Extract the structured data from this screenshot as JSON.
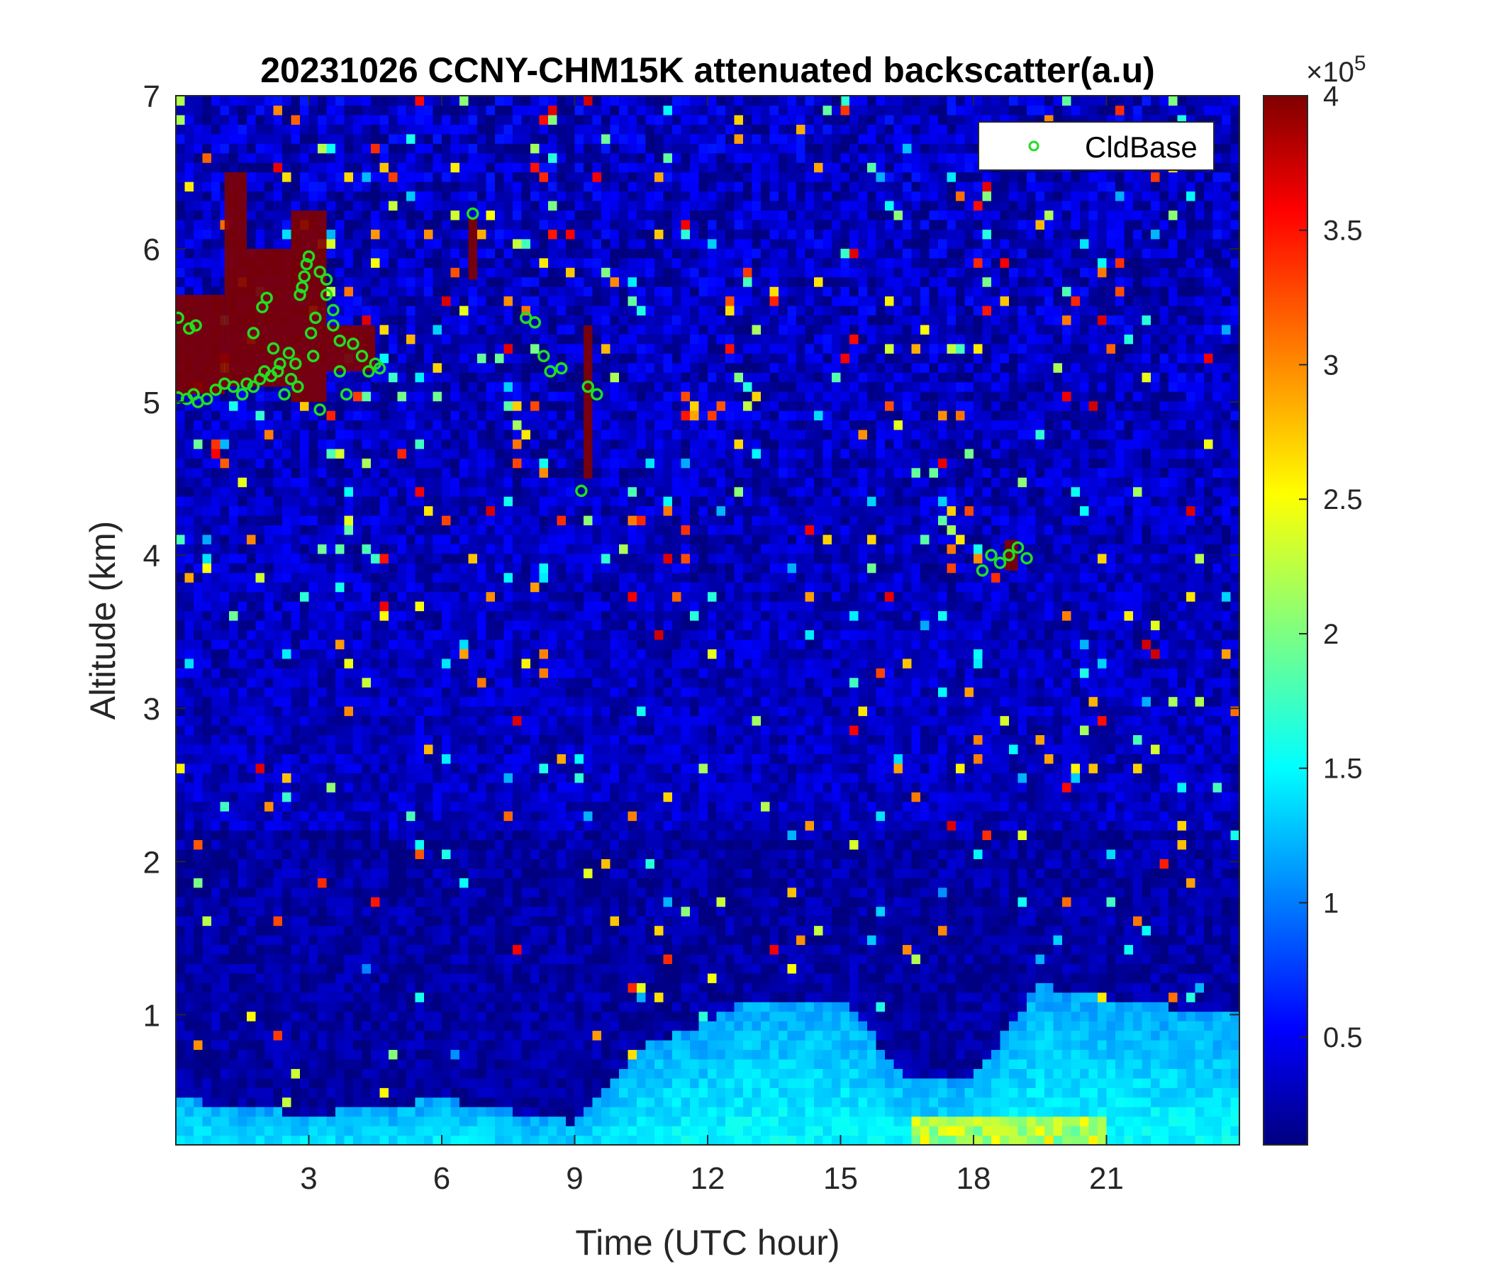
{
  "chart_data": {
    "type": "heatmap",
    "title": "20231026 CCNY-CHM15K attenuated backscatter(a.u)",
    "xlabel": "Time (UTC hour)",
    "ylabel": "Altitude (km)",
    "xlim": [
      0,
      24
    ],
    "ylim": [
      0.15,
      7
    ],
    "x_ticks": [
      3,
      6,
      9,
      12,
      15,
      18,
      21
    ],
    "x_tick_labels": [
      "3",
      "6",
      "9",
      "12",
      "15",
      "18",
      "21"
    ],
    "y_ticks": [
      1,
      2,
      3,
      4,
      5,
      6,
      7
    ],
    "y_tick_labels": [
      "1",
      "2",
      "3",
      "4",
      "5",
      "6",
      "7"
    ],
    "colorbar": {
      "colormap": "jet",
      "clim": [
        0.1,
        4
      ],
      "exponent_label": "×10",
      "exponent_value": "5",
      "ticks": [
        0.5,
        1,
        1.5,
        2,
        2.5,
        3,
        3.5,
        4
      ],
      "tick_labels": [
        "0.5",
        "1",
        "1.5",
        "2",
        "2.5",
        "3",
        "3.5",
        "4"
      ]
    },
    "legend": {
      "placement": "top-right",
      "entries": [
        {
          "name": "CldBase",
          "marker": "circle",
          "color": "#22dd22"
        }
      ]
    },
    "features": {
      "background_level": 0.35,
      "boundary_layer": [
        {
          "x": 0,
          "top": 0.45
        },
        {
          "x": 3,
          "top": 0.35
        },
        {
          "x": 6,
          "top": 0.45
        },
        {
          "x": 9,
          "top": 0.3
        },
        {
          "x": 10.5,
          "top": 0.8
        },
        {
          "x": 12,
          "top": 0.95
        },
        {
          "x": 13,
          "top": 1.1
        },
        {
          "x": 15,
          "top": 1.1
        },
        {
          "x": 16.5,
          "top": 0.6
        },
        {
          "x": 18,
          "top": 0.6
        },
        {
          "x": 19.5,
          "top": 1.2
        },
        {
          "x": 21,
          "top": 1.1
        },
        {
          "x": 24,
          "top": 1.0
        }
      ],
      "cloud_layers": [
        {
          "x_start": 0,
          "x_end": 1.1,
          "base": 5.05,
          "top": 5.7
        },
        {
          "x_start": 1.1,
          "x_end": 1.6,
          "base": 5.1,
          "top": 6.5
        },
        {
          "x_start": 1.6,
          "x_end": 2.6,
          "base": 5.1,
          "top": 6.0
        },
        {
          "x_start": 2.6,
          "x_end": 3.4,
          "base": 5.0,
          "top": 6.25
        },
        {
          "x_start": 3.4,
          "x_end": 4.5,
          "base": 5.2,
          "top": 5.5
        },
        {
          "x_start": 6.6,
          "x_end": 6.8,
          "base": 5.8,
          "top": 6.2
        },
        {
          "x_start": 9.2,
          "x_end": 9.4,
          "base": 4.5,
          "top": 5.5
        },
        {
          "x_start": 18.7,
          "x_end": 19.0,
          "base": 3.9,
          "top": 4.1
        }
      ]
    },
    "series": [
      {
        "name": "CldBase",
        "type": "scatter",
        "x": [
          0.05,
          0.25,
          0.4,
          0.5,
          0.7,
          0.9,
          1.1,
          1.3,
          1.5,
          1.6,
          1.75,
          1.9,
          2.0,
          2.15,
          2.3,
          2.45,
          2.6,
          2.7,
          2.8,
          2.9,
          3.0,
          3.1,
          3.25,
          3.4,
          3.55,
          3.7,
          3.85,
          4.0,
          4.2,
          4.35,
          4.5,
          4.6,
          0.05,
          0.3,
          0.45,
          1.75,
          1.95,
          2.05,
          2.2,
          2.35,
          2.55,
          2.75,
          2.85,
          2.95,
          3.05,
          3.15,
          3.25,
          3.4,
          3.55,
          3.7,
          6.7,
          7.9,
          8.1,
          8.3,
          8.45,
          8.7,
          9.15,
          9.3,
          9.5,
          18.2,
          18.4,
          18.6,
          18.8,
          19.0,
          19.2
        ],
        "y": [
          5.03,
          5.02,
          5.05,
          5.0,
          5.02,
          5.08,
          5.12,
          5.1,
          5.05,
          5.12,
          5.1,
          5.15,
          5.2,
          5.17,
          5.2,
          5.05,
          5.15,
          5.25,
          5.7,
          5.82,
          5.95,
          5.3,
          4.95,
          5.8,
          5.6,
          5.2,
          5.05,
          5.38,
          5.3,
          5.2,
          5.25,
          5.22,
          5.55,
          5.48,
          5.5,
          5.45,
          5.62,
          5.68,
          5.35,
          5.25,
          5.32,
          5.1,
          5.75,
          5.9,
          5.45,
          5.55,
          5.85,
          5.7,
          5.5,
          5.4,
          6.23,
          5.55,
          5.52,
          5.3,
          5.2,
          5.22,
          4.42,
          5.1,
          5.05,
          3.9,
          4.0,
          3.95,
          4.0,
          4.05,
          3.98
        ]
      }
    ]
  }
}
